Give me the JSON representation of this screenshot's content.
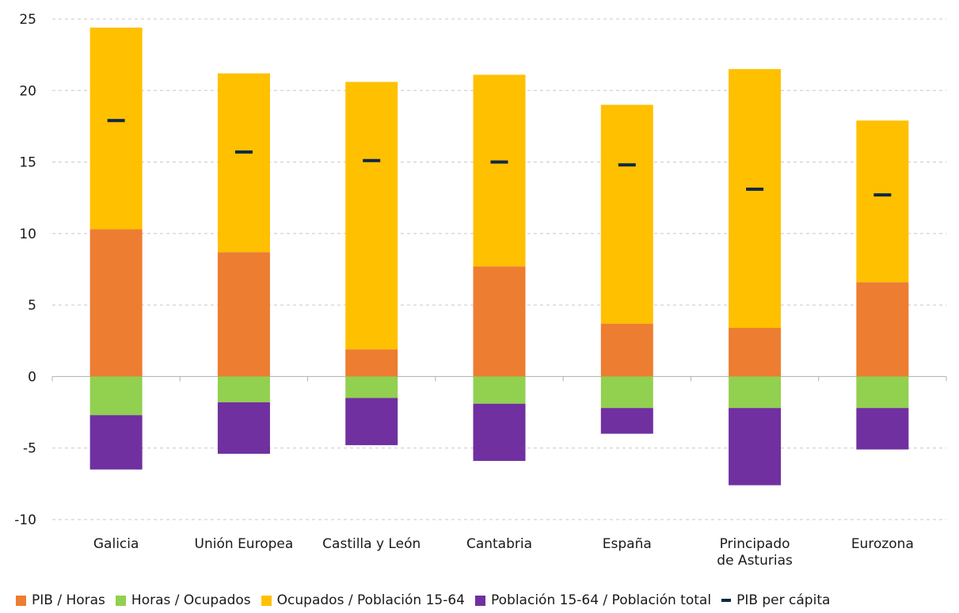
{
  "chart_data": {
    "type": "bar",
    "stacked": true,
    "title": "",
    "xlabel": "",
    "ylabel": "",
    "ylim": [
      -10,
      25
    ],
    "yticks": [
      "25",
      "20",
      "15",
      "10",
      "5",
      "0",
      "-5",
      "-10"
    ],
    "ytick_values": [
      25,
      20,
      15,
      10,
      5,
      0,
      -5,
      -10
    ],
    "grid": true,
    "legend_position": "bottom",
    "categories": [
      [
        "Galicia"
      ],
      [
        "Unión Europea"
      ],
      [
        "Castilla y León"
      ],
      [
        "Cantabria"
      ],
      [
        "España"
      ],
      [
        "Principado",
        "de Asturias"
      ],
      [
        "Eurozona"
      ]
    ],
    "series": [
      {
        "name": "PIB / Horas",
        "color": "#ED7D31",
        "values": [
          10.3,
          8.7,
          1.9,
          7.7,
          3.7,
          3.4,
          6.6
        ]
      },
      {
        "name": "Horas / Ocupados",
        "color": "#92D050",
        "values": [
          -2.7,
          -1.8,
          -1.5,
          -1.9,
          -2.2,
          -2.2,
          -2.2
        ]
      },
      {
        "name": "Ocupados / Población 15-64",
        "color": "#FFC000",
        "values": [
          14.1,
          12.5,
          18.7,
          13.4,
          15.3,
          18.1,
          11.3
        ]
      },
      {
        "name": "Población 15-64 / Población total",
        "color": "#7030A0",
        "values": [
          -3.8,
          -3.6,
          -3.3,
          -4.0,
          -1.8,
          -5.4,
          -2.9
        ]
      }
    ],
    "markers": {
      "name": "PIB per cápita",
      "color": "#0F2846",
      "values": [
        17.9,
        15.7,
        15.1,
        15.0,
        14.8,
        13.1,
        12.7
      ]
    }
  }
}
